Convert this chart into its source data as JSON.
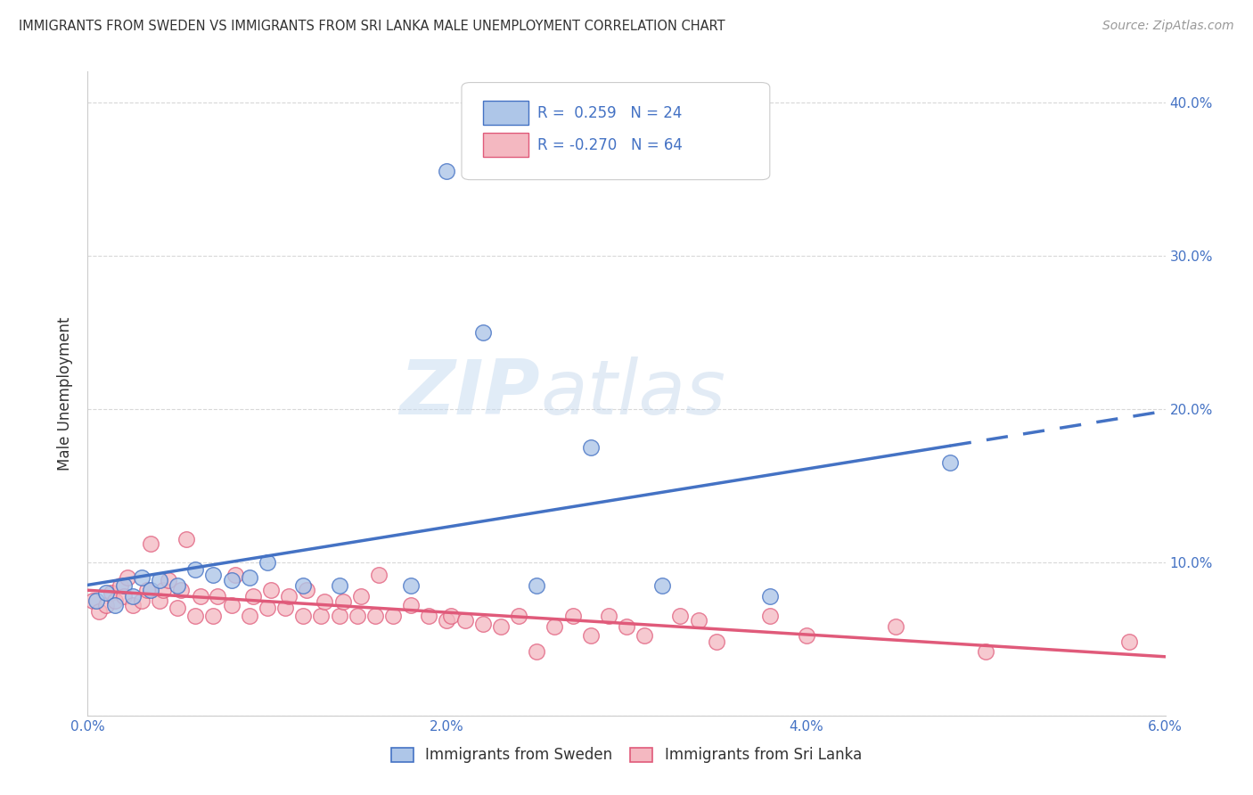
{
  "title": "IMMIGRANTS FROM SWEDEN VS IMMIGRANTS FROM SRI LANKA MALE UNEMPLOYMENT CORRELATION CHART",
  "source": "Source: ZipAtlas.com",
  "ylabel": "Male Unemployment",
  "xlim": [
    0.0,
    0.06
  ],
  "ylim": [
    0.0,
    0.42
  ],
  "xticks": [
    0.0,
    0.01,
    0.02,
    0.03,
    0.04,
    0.05,
    0.06
  ],
  "xticklabels": [
    "0.0%",
    "",
    "2.0%",
    "",
    "4.0%",
    "",
    "6.0%"
  ],
  "yticks": [
    0.0,
    0.1,
    0.2,
    0.3,
    0.4
  ],
  "yticklabels_right": [
    "",
    "10.0%",
    "20.0%",
    "30.0%",
    "40.0%"
  ],
  "background_color": "#ffffff",
  "grid_color": "#d8d8d8",
  "sweden_color": "#aec6e8",
  "sri_lanka_color": "#f4b8c1",
  "sweden_line_color": "#4472c4",
  "sri_lanka_line_color": "#e05a7a",
  "sweden_R": 0.259,
  "sweden_N": 24,
  "sri_lanka_R": -0.27,
  "sri_lanka_N": 64,
  "sweden_x": [
    0.0005,
    0.001,
    0.0015,
    0.002,
    0.0025,
    0.003,
    0.0035,
    0.004,
    0.005,
    0.006,
    0.007,
    0.008,
    0.009,
    0.01,
    0.012,
    0.014,
    0.018,
    0.02,
    0.022,
    0.025,
    0.028,
    0.032,
    0.038,
    0.048
  ],
  "sweden_y": [
    0.075,
    0.08,
    0.072,
    0.085,
    0.078,
    0.09,
    0.082,
    0.088,
    0.085,
    0.095,
    0.092,
    0.088,
    0.09,
    0.1,
    0.085,
    0.085,
    0.085,
    0.355,
    0.25,
    0.085,
    0.175,
    0.085,
    0.078,
    0.165
  ],
  "sri_lanka_x": [
    0.0003,
    0.0006,
    0.001,
    0.0013,
    0.0015,
    0.0018,
    0.002,
    0.0022,
    0.0025,
    0.003,
    0.0033,
    0.0035,
    0.004,
    0.0042,
    0.0045,
    0.005,
    0.0052,
    0.0055,
    0.006,
    0.0063,
    0.007,
    0.0072,
    0.008,
    0.0082,
    0.009,
    0.0092,
    0.01,
    0.0102,
    0.011,
    0.0112,
    0.012,
    0.0122,
    0.013,
    0.0132,
    0.014,
    0.0142,
    0.015,
    0.0152,
    0.016,
    0.0162,
    0.017,
    0.018,
    0.019,
    0.02,
    0.0202,
    0.021,
    0.022,
    0.023,
    0.024,
    0.025,
    0.026,
    0.027,
    0.028,
    0.029,
    0.03,
    0.031,
    0.033,
    0.034,
    0.035,
    0.038,
    0.04,
    0.045,
    0.05,
    0.058
  ],
  "sri_lanka_y": [
    0.075,
    0.068,
    0.072,
    0.08,
    0.075,
    0.085,
    0.078,
    0.09,
    0.072,
    0.075,
    0.082,
    0.112,
    0.075,
    0.082,
    0.088,
    0.07,
    0.082,
    0.115,
    0.065,
    0.078,
    0.065,
    0.078,
    0.072,
    0.092,
    0.065,
    0.078,
    0.07,
    0.082,
    0.07,
    0.078,
    0.065,
    0.082,
    0.065,
    0.074,
    0.065,
    0.074,
    0.065,
    0.078,
    0.065,
    0.092,
    0.065,
    0.072,
    0.065,
    0.062,
    0.065,
    0.062,
    0.06,
    0.058,
    0.065,
    0.042,
    0.058,
    0.065,
    0.052,
    0.065,
    0.058,
    0.052,
    0.065,
    0.062,
    0.048,
    0.065,
    0.052,
    0.058,
    0.042,
    0.048
  ]
}
